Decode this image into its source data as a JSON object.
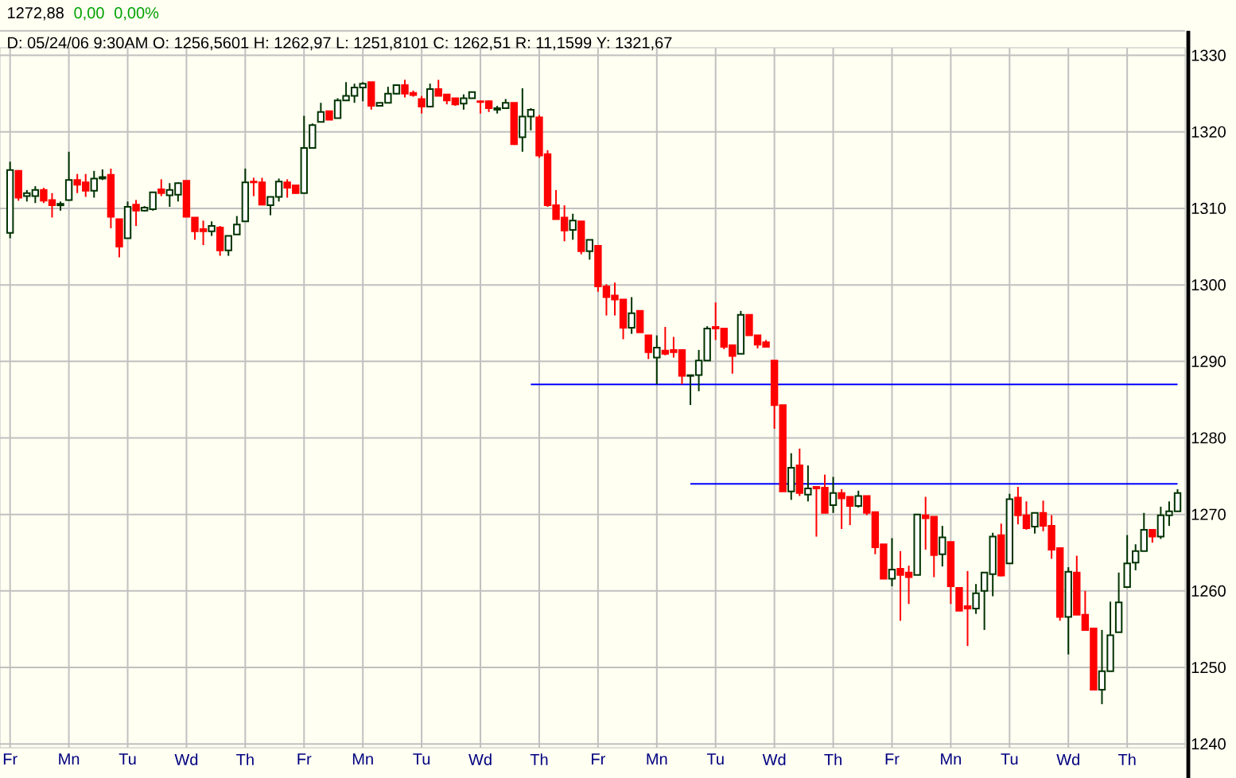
{
  "chart_data": {
    "type": "candlestick",
    "title": "1272,88",
    "subtitle": "D: 05/24/06 9:30AM O: 1256,5601 H: 1262,97 L: 1251,8101 C: 1262,51 R: 11,1599 Y: 1321,67",
    "annotations": [
      "0,00",
      "0,00%"
    ],
    "categories": [
      "Fr",
      null,
      null,
      null,
      null,
      null,
      null,
      "Mn",
      null,
      null,
      null,
      null,
      null,
      null,
      "Tu",
      null,
      null,
      null,
      null,
      null,
      null,
      "Wd",
      null,
      null,
      null,
      null,
      null,
      null,
      "Th",
      null,
      null,
      null,
      null,
      null,
      null,
      "Fr",
      null,
      null,
      null,
      null,
      null,
      null,
      "Mn",
      null,
      null,
      null,
      null,
      null,
      null,
      "Tu",
      null,
      null,
      null,
      null,
      null,
      null,
      "Wd",
      null,
      null,
      null,
      null,
      null,
      null,
      "Th",
      null,
      null,
      null,
      null,
      null,
      null,
      "Fr",
      null,
      null,
      null,
      null,
      null,
      null,
      "Mn",
      null,
      null,
      null,
      null,
      null,
      null,
      "Tu",
      null,
      null,
      null,
      null,
      null,
      null,
      "Wd",
      null,
      null,
      null,
      null,
      null,
      null,
      "Th",
      null,
      null,
      null,
      null,
      null,
      null,
      "Fr",
      null,
      null,
      null,
      null,
      null,
      null,
      "Mn",
      null,
      null,
      null,
      null,
      null,
      null,
      "Tu",
      null,
      null,
      null,
      null,
      null,
      null,
      "Wd",
      null,
      null,
      null,
      null,
      null,
      null,
      "Th",
      null,
      null,
      null,
      null,
      null,
      null
    ],
    "ohlc": [
      [
        1306.8,
        1316.1,
        1306.1,
        1315.0
      ],
      [
        1314.9,
        1315.0,
        1311.0,
        1311.4
      ],
      [
        1311.6,
        1312.4,
        1310.9,
        1312.0
      ],
      [
        1311.6,
        1312.9,
        1310.7,
        1312.4
      ],
      [
        1312.4,
        1312.7,
        1310.7,
        1311.0
      ],
      [
        1311.1,
        1312.0,
        1308.8,
        1310.4
      ],
      [
        1310.4,
        1310.9,
        1309.7,
        1310.6
      ],
      [
        1311.1,
        1317.4,
        1311.0,
        1313.7
      ],
      [
        1313.7,
        1314.5,
        1312.0,
        1313.1
      ],
      [
        1313.4,
        1314.5,
        1311.5,
        1312.3
      ],
      [
        1312.3,
        1314.9,
        1311.4,
        1313.9
      ],
      [
        1313.9,
        1315.1,
        1313.7,
        1314.1
      ],
      [
        1314.4,
        1315.2,
        1307.4,
        1308.9
      ],
      [
        1308.6,
        1308.6,
        1303.6,
        1305.0
      ],
      [
        1306.1,
        1310.9,
        1306.1,
        1310.2
      ],
      [
        1310.5,
        1311.1,
        1307.7,
        1309.7
      ],
      [
        1309.7,
        1310.3,
        1309.6,
        1310.1
      ],
      [
        1309.9,
        1312.1,
        1309.7,
        1312.1
      ],
      [
        1312.5,
        1313.8,
        1311.6,
        1312.0
      ],
      [
        1311.7,
        1313.3,
        1310.2,
        1312.4
      ],
      [
        1311.8,
        1313.4,
        1310.9,
        1313.3
      ],
      [
        1313.6,
        1313.6,
        1308.9,
        1308.9
      ],
      [
        1308.8,
        1308.8,
        1305.9,
        1307.0
      ],
      [
        1307.3,
        1308.4,
        1305.2,
        1307.0
      ],
      [
        1307.0,
        1308.3,
        1306.4,
        1307.7
      ],
      [
        1307.5,
        1307.7,
        1303.8,
        1304.5
      ],
      [
        1304.5,
        1306.4,
        1303.8,
        1306.4
      ],
      [
        1306.6,
        1309.0,
        1306.6,
        1307.9
      ],
      [
        1308.3,
        1315.2,
        1308.3,
        1313.4
      ],
      [
        1313.5,
        1314.0,
        1311.6,
        1313.4
      ],
      [
        1313.4,
        1314.0,
        1310.4,
        1310.5
      ],
      [
        1310.4,
        1311.5,
        1309.1,
        1311.5
      ],
      [
        1311.5,
        1313.9,
        1310.9,
        1313.5
      ],
      [
        1313.4,
        1313.8,
        1311.4,
        1312.7
      ],
      [
        1313.0,
        1313.0,
        1311.9,
        1312.0
      ],
      [
        1312.0,
        1322.1,
        1312.0,
        1317.9
      ],
      [
        1317.9,
        1321.1,
        1317.9,
        1320.9
      ],
      [
        1321.3,
        1323.8,
        1321.3,
        1322.6
      ],
      [
        1322.7,
        1322.7,
        1321.6,
        1321.6
      ],
      [
        1321.8,
        1324.4,
        1321.8,
        1324.1
      ],
      [
        1324.1,
        1326.5,
        1324.1,
        1324.7
      ],
      [
        1324.7,
        1326.3,
        1323.8,
        1325.8
      ],
      [
        1325.8,
        1326.5,
        1324.0,
        1326.3
      ],
      [
        1326.5,
        1326.5,
        1322.9,
        1323.4
      ],
      [
        1323.4,
        1323.8,
        1323.3,
        1323.8
      ],
      [
        1323.8,
        1325.9,
        1323.8,
        1325.0
      ],
      [
        1325.0,
        1326.1,
        1324.9,
        1326.1
      ],
      [
        1326.1,
        1326.8,
        1324.5,
        1325.0
      ],
      [
        1325.1,
        1325.4,
        1324.6,
        1324.8
      ],
      [
        1324.3,
        1324.7,
        1322.4,
        1323.3
      ],
      [
        1323.3,
        1326.3,
        1323.3,
        1325.6
      ],
      [
        1325.6,
        1326.8,
        1324.7,
        1324.7
      ],
      [
        1324.9,
        1324.9,
        1323.6,
        1324.1
      ],
      [
        1324.4,
        1324.4,
        1323.4,
        1323.6
      ],
      [
        1323.7,
        1324.9,
        1322.9,
        1324.4
      ],
      [
        1324.4,
        1325.2,
        1324.4,
        1325.2
      ],
      [
        1324.0,
        1324.1,
        1322.4,
        1323.9
      ],
      [
        1324.0,
        1324.1,
        1322.6,
        1323.1
      ],
      [
        1322.9,
        1323.4,
        1322.4,
        1323.1
      ],
      [
        1323.1,
        1324.3,
        1323.1,
        1323.8
      ],
      [
        1323.8,
        1323.8,
        1318.3,
        1318.4
      ],
      [
        1319.3,
        1325.7,
        1317.4,
        1322.0
      ],
      [
        1322.0,
        1323.1,
        1320.2,
        1322.9
      ],
      [
        1321.9,
        1322.2,
        1316.6,
        1316.9
      ],
      [
        1317.1,
        1317.6,
        1310.2,
        1310.4
      ],
      [
        1310.4,
        1312.4,
        1308.6,
        1308.6
      ],
      [
        1308.8,
        1310.4,
        1305.7,
        1307.1
      ],
      [
        1307.2,
        1309.3,
        1305.9,
        1308.4
      ],
      [
        1308.3,
        1308.3,
        1304.0,
        1304.4
      ],
      [
        1304.4,
        1305.9,
        1303.3,
        1305.9
      ],
      [
        1305.1,
        1305.1,
        1299.1,
        1299.8
      ],
      [
        1299.8,
        1300.1,
        1296.0,
        1298.4
      ],
      [
        1298.6,
        1300.3,
        1296.0,
        1298.1
      ],
      [
        1298.1,
        1298.1,
        1292.9,
        1294.4
      ],
      [
        1294.4,
        1298.4,
        1293.6,
        1296.3
      ],
      [
        1296.6,
        1296.6,
        1293.8,
        1293.8
      ],
      [
        1293.4,
        1293.4,
        1290.3,
        1291.2
      ],
      [
        1290.5,
        1293.4,
        1287.0,
        1291.8
      ],
      [
        1291.4,
        1294.5,
        1290.8,
        1291.0
      ],
      [
        1291.5,
        1293.2,
        1290.5,
        1291.2
      ],
      [
        1291.5,
        1291.5,
        1287.0,
        1288.1
      ],
      [
        1288.1,
        1288.2,
        1284.3,
        1288.2
      ],
      [
        1288.2,
        1291.5,
        1286.1,
        1290.1
      ],
      [
        1290.1,
        1294.6,
        1290.1,
        1294.3
      ],
      [
        1294.5,
        1297.7,
        1292.8,
        1294.3
      ],
      [
        1294.3,
        1294.3,
        1291.6,
        1291.9
      ],
      [
        1292.1,
        1292.2,
        1288.4,
        1290.7
      ],
      [
        1291.0,
        1296.6,
        1291.0,
        1296.1
      ],
      [
        1296.1,
        1296.1,
        1293.4,
        1293.4
      ],
      [
        1293.4,
        1293.4,
        1291.7,
        1292.2
      ],
      [
        1292.5,
        1292.8,
        1291.9,
        1291.9
      ],
      [
        1290.1,
        1290.1,
        1281.2,
        1284.3
      ],
      [
        1284.3,
        1284.3,
        1273.0,
        1273.0
      ],
      [
        1273.0,
        1278.0,
        1271.9,
        1276.1
      ],
      [
        1276.4,
        1278.6,
        1272.4,
        1272.8
      ],
      [
        1272.6,
        1276.4,
        1271.7,
        1273.4
      ],
      [
        1273.6,
        1273.6,
        1267.1,
        1273.4
      ],
      [
        1273.5,
        1275.2,
        1270.2,
        1270.2
      ],
      [
        1271.2,
        1274.9,
        1270.2,
        1272.8
      ],
      [
        1272.8,
        1273.3,
        1268.1,
        1272.1
      ],
      [
        1272.3,
        1272.3,
        1268.6,
        1271.1
      ],
      [
        1271.1,
        1273.1,
        1270.9,
        1272.4
      ],
      [
        1272.4,
        1272.4,
        1269.9,
        1270.2
      ],
      [
        1270.3,
        1270.3,
        1264.8,
        1265.7
      ],
      [
        1266.1,
        1266.1,
        1261.6,
        1261.6
      ],
      [
        1261.6,
        1266.9,
        1260.6,
        1262.8
      ],
      [
        1262.9,
        1265.2,
        1256.1,
        1262.1
      ],
      [
        1262.4,
        1263.3,
        1258.3,
        1261.8
      ],
      [
        1262.1,
        1270.0,
        1262.1,
        1270.0
      ],
      [
        1269.9,
        1272.3,
        1265.4,
        1269.5
      ],
      [
        1269.7,
        1269.7,
        1261.8,
        1264.7
      ],
      [
        1264.8,
        1268.5,
        1263.2,
        1267.0
      ],
      [
        1266.4,
        1266.4,
        1258.3,
        1260.6
      ],
      [
        1260.4,
        1260.4,
        1257.4,
        1257.4
      ],
      [
        1258.0,
        1262.6,
        1252.8,
        1257.7
      ],
      [
        1257.7,
        1260.9,
        1257.0,
        1259.7
      ],
      [
        1260.0,
        1262.4,
        1254.9,
        1262.4
      ],
      [
        1262.2,
        1267.6,
        1259.3,
        1267.1
      ],
      [
        1267.3,
        1268.8,
        1261.9,
        1262.0
      ],
      [
        1263.6,
        1272.7,
        1263.6,
        1272.0
      ],
      [
        1272.2,
        1273.6,
        1268.7,
        1269.9
      ],
      [
        1269.9,
        1271.7,
        1268.0,
        1268.2
      ],
      [
        1268.4,
        1270.2,
        1267.5,
        1270.2
      ],
      [
        1270.2,
        1271.8,
        1267.8,
        1268.5
      ],
      [
        1268.5,
        1269.9,
        1264.2,
        1265.4
      ],
      [
        1265.6,
        1265.6,
        1256.1,
        1256.6
      ],
      [
        1256.6,
        1263.1,
        1251.7,
        1262.5
      ],
      [
        1262.4,
        1264.6,
        1256.9,
        1256.9
      ],
      [
        1256.9,
        1260.0,
        1254.9,
        1254.9
      ],
      [
        1255.1,
        1255.1,
        1247.1,
        1247.1
      ],
      [
        1247.1,
        1254.9,
        1245.2,
        1249.5
      ],
      [
        1249.5,
        1258.6,
        1249.5,
        1254.2
      ],
      [
        1254.6,
        1262.4,
        1254.6,
        1258.5
      ],
      [
        1260.5,
        1267.3,
        1260.5,
        1263.6
      ],
      [
        1263.7,
        1266.1,
        1262.7,
        1265.2
      ],
      [
        1265.2,
        1270.2,
        1265.2,
        1268.0
      ],
      [
        1268.0,
        1268.0,
        1266.3,
        1267.1
      ],
      [
        1267.1,
        1271.0,
        1266.8,
        1269.9
      ],
      [
        1269.9,
        1271.7,
        1268.5,
        1270.4
      ],
      [
        1270.4,
        1273.3,
        1270.4,
        1272.8
      ]
    ],
    "series": [
      {
        "type": "line",
        "color": "#0000ff",
        "values": [
          null,
          null,
          null,
          null,
          null,
          null,
          null,
          null,
          null,
          null,
          null,
          null,
          null,
          null,
          null,
          null,
          null,
          null,
          null,
          null,
          null,
          null,
          null,
          null,
          null,
          null,
          null,
          null,
          null,
          null,
          null,
          null,
          null,
          null,
          null,
          null,
          null,
          null,
          null,
          null,
          null,
          null,
          null,
          null,
          null,
          null,
          null,
          null,
          null,
          null,
          null,
          null,
          null,
          null,
          null,
          null,
          null,
          null,
          null,
          null,
          null,
          null,
          1287,
          1287,
          1287,
          1287,
          1287,
          1287,
          1287,
          1287,
          1287,
          1287,
          1287,
          1287,
          1287,
          1287,
          1287,
          1287,
          1287,
          1287,
          1287,
          1287,
          1287,
          1287,
          1287,
          1287,
          1287,
          1287,
          1287,
          1287,
          1287,
          1287,
          1287,
          1287,
          1287,
          1287,
          1287,
          1287,
          1287,
          1287,
          1287,
          1287,
          1287,
          1287,
          1287,
          1287,
          1287,
          1287,
          1287,
          1287,
          1287,
          1287,
          1287,
          1287,
          1287,
          1287,
          1287,
          1287,
          1287,
          1287,
          1287,
          1287,
          1287,
          1287,
          1287,
          1287,
          1287,
          1287,
          1287,
          1287,
          1287,
          1287,
          1287,
          1287,
          1287,
          1287,
          1287,
          1287,
          1287,
          1287
        ]
      },
      {
        "type": "line",
        "color": "#0000ff",
        "values": [
          null,
          null,
          null,
          null,
          null,
          null,
          null,
          null,
          null,
          null,
          null,
          null,
          null,
          null,
          null,
          null,
          null,
          null,
          null,
          null,
          null,
          null,
          null,
          null,
          null,
          null,
          null,
          null,
          null,
          null,
          null,
          null,
          null,
          null,
          null,
          null,
          null,
          null,
          null,
          null,
          null,
          null,
          null,
          null,
          null,
          null,
          null,
          null,
          null,
          null,
          null,
          null,
          null,
          null,
          null,
          null,
          null,
          null,
          null,
          null,
          null,
          null,
          null,
          null,
          null,
          null,
          null,
          null,
          null,
          null,
          null,
          null,
          null,
          null,
          null,
          null,
          null,
          null,
          null,
          null,
          null,
          1274,
          1274,
          1274,
          1274,
          1274,
          1274,
          1274,
          1274,
          1274,
          1274,
          1274,
          1274,
          1274,
          1274,
          1274,
          1274,
          1274,
          1274,
          1274,
          1274,
          1274,
          1274,
          1274,
          1274,
          1274,
          1274,
          1274,
          1274,
          1274,
          1274,
          1274,
          1274,
          1274,
          1274,
          1274,
          1274,
          1274,
          1274,
          1274,
          1274,
          1274,
          1274,
          1274,
          1274,
          1274,
          1274,
          1274,
          1274,
          1274,
          1274,
          1274,
          1274,
          1274,
          1274,
          1274,
          1274,
          1274,
          1274,
          1274
        ]
      }
    ],
    "ylim": [
      1239.5,
      1331
    ],
    "yticks": [
      1240,
      1250,
      1260,
      1270,
      1280,
      1290,
      1300,
      1310,
      1320,
      1330
    ],
    "grid": true
  }
}
